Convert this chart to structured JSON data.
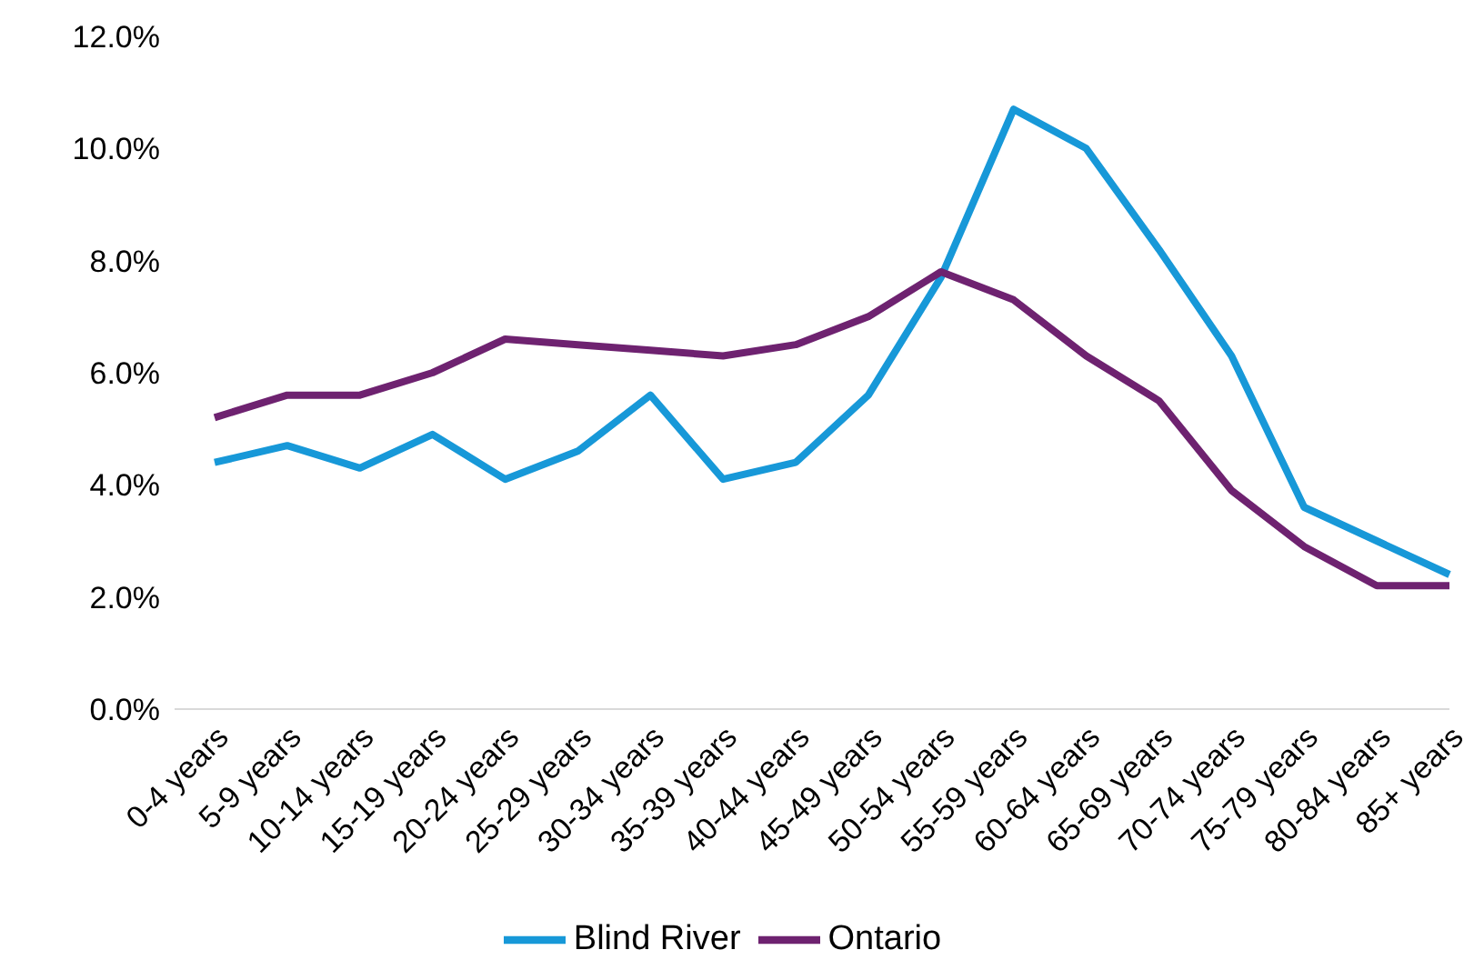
{
  "chart_data": {
    "type": "line",
    "categories": [
      "0-4 years",
      "5-9 years",
      "10-14 years",
      "15-19 years",
      "20-24 years",
      "25-29 years",
      "30-34 years",
      "35-39 years",
      "40-44 years",
      "45-49 years",
      "50-54 years",
      "55-59 years",
      "60-64 years",
      "65-69 years",
      "70-74 years",
      "75-79 years",
      "80-84 years",
      "85+ years"
    ],
    "series": [
      {
        "name": "Blind River",
        "color": "#1798d8",
        "values": [
          4.4,
          4.7,
          4.3,
          4.9,
          4.1,
          4.6,
          5.6,
          4.1,
          4.4,
          5.6,
          7.7,
          10.7,
          10.0,
          8.2,
          6.3,
          3.6,
          3.0,
          2.4
        ]
      },
      {
        "name": "Ontario",
        "color": "#6e2270",
        "values": [
          5.2,
          5.6,
          5.6,
          6.0,
          6.6,
          6.5,
          6.4,
          6.3,
          6.5,
          7.0,
          7.8,
          7.3,
          6.3,
          5.5,
          3.9,
          2.9,
          2.2,
          2.2
        ]
      }
    ],
    "ylim": [
      0,
      12
    ],
    "yticks": [
      {
        "value": 0,
        "label": "0.0%"
      },
      {
        "value": 2,
        "label": "2.0%"
      },
      {
        "value": 4,
        "label": "4.0%"
      },
      {
        "value": 6,
        "label": "6.0%"
      },
      {
        "value": 8,
        "label": "8.0%"
      },
      {
        "value": 10,
        "label": "10.0%"
      },
      {
        "value": 12,
        "label": "12.0%"
      }
    ],
    "grid": false,
    "legend": "bottom",
    "marker": "none",
    "line_style": "solid"
  }
}
